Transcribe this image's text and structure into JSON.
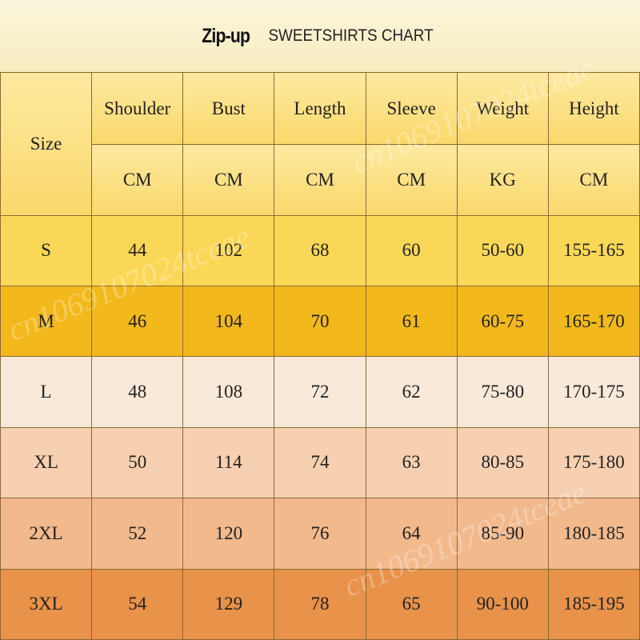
{
  "title": {
    "bold": "Zip-up",
    "rest": "SWEETSHIRTS CHART"
  },
  "watermark": "cn1069107024tceae",
  "table": {
    "headers": [
      "Size",
      "Shoulder",
      "Bust",
      "Length",
      "Sleeve",
      "Weight",
      "Height"
    ],
    "units": [
      "CM",
      "CM",
      "CM",
      "CM",
      "KG",
      "CM"
    ],
    "rows": [
      [
        "S",
        "44",
        "102",
        "68",
        "60",
        "50-60",
        "155-165"
      ],
      [
        "M",
        "46",
        "104",
        "70",
        "61",
        "60-75",
        "165-170"
      ],
      [
        "L",
        "48",
        "108",
        "72",
        "62",
        "75-80",
        "170-175"
      ],
      [
        "XL",
        "50",
        "114",
        "74",
        "63",
        "80-85",
        "175-180"
      ],
      [
        "2XL",
        "52",
        "120",
        "76",
        "64",
        "85-90",
        "180-185"
      ],
      [
        "3XL",
        "54",
        "129",
        "78",
        "65",
        "90-100",
        "185-195"
      ]
    ]
  }
}
